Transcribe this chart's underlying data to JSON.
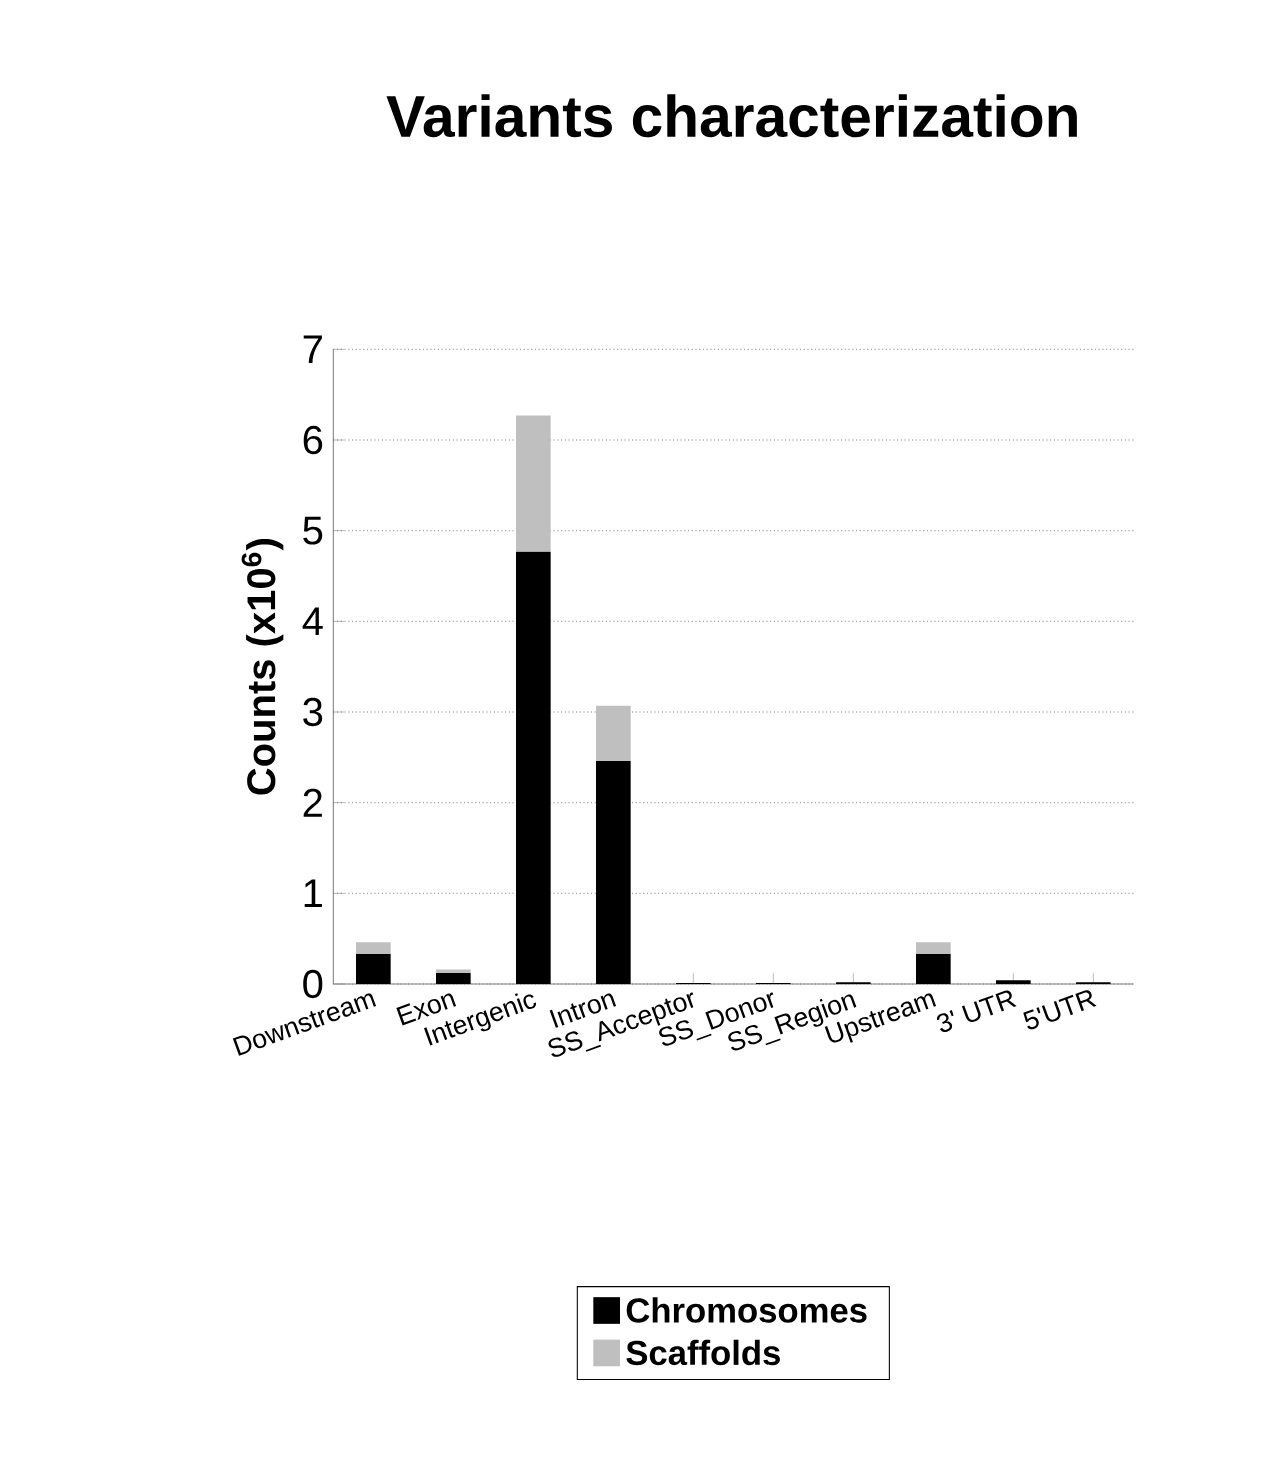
{
  "chart_data": {
    "type": "bar",
    "title": "Variants characterization",
    "ylabel": "Counts (x10$^{6}$)",
    "categories": [
      "Downstream",
      "Exon",
      "Intergenic",
      "Intron",
      "SS_Acceptor",
      "SS_Donor",
      "SS_Region",
      "Upstream",
      "3' UTR",
      "5'UTR"
    ],
    "series": [
      {
        "name": "Chromosomes",
        "color": "#000000",
        "values": [
          0.33,
          0.12,
          4.77,
          2.46,
          0.01,
          0.01,
          0.02,
          0.33,
          0.04,
          0.02
        ]
      },
      {
        "name": "Scaffolds",
        "color": "#bfbfbf",
        "values": [
          0.13,
          0.04,
          1.5,
          0.61,
          0.0,
          0.0,
          0.0,
          0.13,
          0.0,
          0.0
        ]
      }
    ],
    "stacked": true,
    "ylim": [
      0,
      7
    ],
    "yticks": [
      0,
      1,
      2,
      3,
      4,
      5,
      6,
      7
    ],
    "grid": "y",
    "legend": "bottom"
  }
}
